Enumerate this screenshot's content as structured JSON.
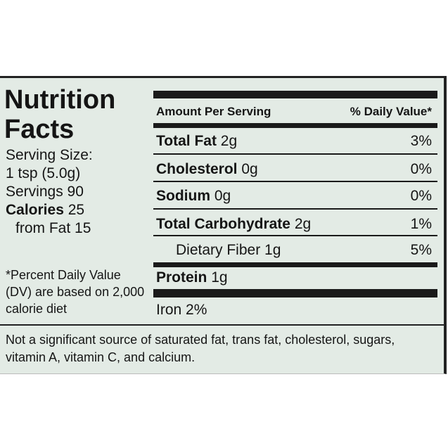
{
  "left": {
    "title": "Nutrition Facts",
    "serving_size_label": "Serving Size:",
    "serving_size": "1 tsp (5.0g)",
    "servings": "Servings 90",
    "calories_label": "Calories",
    "calories": "25",
    "from_fat": "from Fat 15",
    "footnote": "*Percent Daily Value (DV) are based on 2,000 calorie diet"
  },
  "table": {
    "header_amount": "Amount Per Serving",
    "header_dv": "% Daily Value*",
    "rows": [
      {
        "name": "Total Fat",
        "amount": "2g",
        "dv": "3%"
      },
      {
        "name": "Cholesterol",
        "amount": "0g",
        "dv": "0%"
      },
      {
        "name": "Sodium",
        "amount": "0g",
        "dv": "0%"
      },
      {
        "name": "Total Carbohydrate",
        "amount": "2g",
        "dv": "1%"
      },
      {
        "name": "Dietary Fiber",
        "amount": "1g",
        "dv": "5%"
      },
      {
        "name": "Protein",
        "amount": "1g"
      },
      {
        "name": "Iron",
        "amount": "2%"
      }
    ]
  },
  "note": "Not a significant source of saturated fat, trans fat, cholesterol, sugars, vitamin A, vitamin C, and calcium."
}
